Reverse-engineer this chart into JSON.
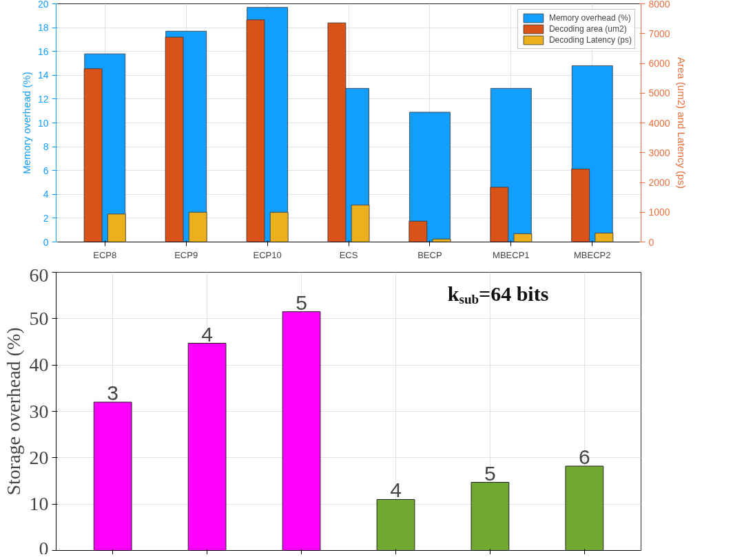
{
  "chart_data": [
    {
      "type": "bar",
      "categories": [
        "ECP8",
        "ECP9",
        "ECP10",
        "ECS",
        "BECP",
        "MBECP1",
        "MBECP2"
      ],
      "ylabel": "Memory overhead (%)",
      "y2label": "Area (um2) and Latency (ps)",
      "ylim": [
        0,
        20
      ],
      "yticks": [
        0,
        2,
        4,
        6,
        8,
        10,
        12,
        14,
        16,
        18,
        20
      ],
      "y2lim": [
        0,
        8000
      ],
      "y2ticks": [
        0,
        1000,
        2000,
        3000,
        4000,
        5000,
        6000,
        7000,
        8000
      ],
      "grid": true,
      "legend": "top right",
      "series": [
        {
          "name": "Memory overhead (%)",
          "color": "#129efc",
          "axis": "y",
          "values": [
            15.8,
            17.7,
            19.7,
            12.9,
            10.9,
            12.9,
            14.8
          ]
        },
        {
          "name": "Decoding area (um2)",
          "color": "#d95218",
          "axis": "y2",
          "values": [
            5820,
            6880,
            7460,
            7360,
            700,
            1840,
            2450
          ]
        },
        {
          "name": "Decoding Latency (ps)",
          "color": "#ecb01f",
          "axis": "y2",
          "values": [
            940,
            1000,
            1000,
            1240,
            100,
            280,
            300
          ]
        }
      ]
    },
    {
      "type": "bar",
      "categories": [
        null,
        null,
        null,
        null,
        null,
        null
      ],
      "ylabel": "Storage overhead (%)",
      "ylim": [
        0,
        60
      ],
      "yticks": [
        0,
        10,
        20,
        30,
        40,
        50,
        60
      ],
      "grid": true,
      "values": [
        32,
        44.7,
        51.5,
        11,
        14.7,
        18.2
      ],
      "colors": [
        "#ff00ff",
        "#ff00ff",
        "#ff00ff",
        "#70a830",
        "#70a830",
        "#70a830"
      ],
      "annotations": [
        "k$_{sub}$=64 bits",
        {
          "text": "3",
          "y": 32
        },
        {
          "text": "4",
          "y": 44.7
        },
        {
          "text": "5",
          "y": 51.5
        },
        {
          "text": "4",
          "y": 11
        },
        {
          "text": "5",
          "y": 14.7
        },
        {
          "text": "6",
          "y": 18.2
        }
      ]
    }
  ]
}
